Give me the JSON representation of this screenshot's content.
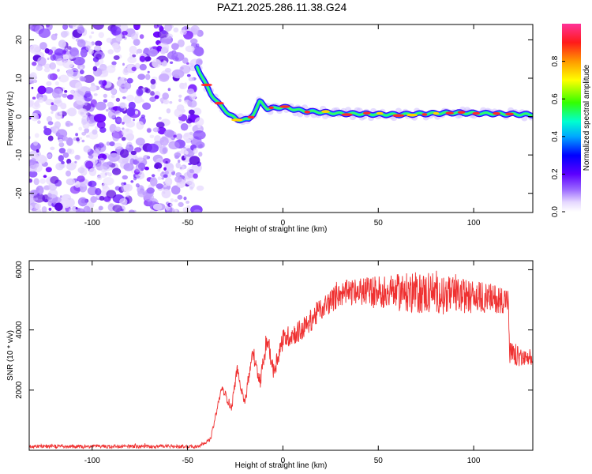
{
  "title": "PAZ1.2025.286.11.38.G24",
  "chart_data": [
    {
      "type": "heatmap",
      "name": "spectrogram",
      "xlabel": "Height of straight line (km)",
      "ylabel": "Frequency (Hz)",
      "xlim": [
        -133,
        131
      ],
      "ylim": [
        -25,
        24
      ],
      "xticks": [
        -100,
        -50,
        0,
        50,
        100
      ],
      "yticks": [
        -20,
        -10,
        0,
        10,
        20
      ],
      "colorbar": {
        "label": "Normalized spectral amplitude",
        "range": [
          0,
          1
        ],
        "ticks": [
          "0.0",
          "0.2",
          "0.4",
          "0.6",
          "0.8"
        ],
        "tick_values": [
          0,
          0.2,
          0.4,
          0.6,
          0.8
        ]
      },
      "noise_region": {
        "x_from": -133,
        "x_to": -43
      },
      "ridge": [
        {
          "x": -45,
          "f": 13
        },
        {
          "x": -42,
          "f": 10
        },
        {
          "x": -38,
          "f": 6
        },
        {
          "x": -33,
          "f": 3
        },
        {
          "x": -28,
          "f": 0.5
        },
        {
          "x": -24,
          "f": -0.8
        },
        {
          "x": -18,
          "f": -0.8
        },
        {
          "x": -15,
          "f": 1
        },
        {
          "x": -12,
          "f": 4
        },
        {
          "x": -8,
          "f": 2
        },
        {
          "x": 0,
          "f": 2.5
        },
        {
          "x": 10,
          "f": 1.5
        },
        {
          "x": 30,
          "f": 0.8
        },
        {
          "x": 60,
          "f": 0.5
        },
        {
          "x": 90,
          "f": 1
        },
        {
          "x": 131,
          "f": 0.5
        }
      ]
    },
    {
      "type": "line",
      "name": "snr",
      "xlabel": "Height of straight line (km)",
      "ylabel": "SNR (10 * v/v)",
      "xlim": [
        -133,
        131
      ],
      "ylim": [
        0,
        6300
      ],
      "xticks": [
        -100,
        -50,
        0,
        50,
        100
      ],
      "yticks": [
        2000,
        4000,
        6000
      ],
      "color": "#ef3131",
      "profile": [
        {
          "x": -133,
          "y": 130
        },
        {
          "x": -45,
          "y": 130
        },
        {
          "x": -38,
          "y": 350
        },
        {
          "x": -32,
          "y": 2100
        },
        {
          "x": -27,
          "y": 1400
        },
        {
          "x": -24,
          "y": 2700
        },
        {
          "x": -20,
          "y": 1600
        },
        {
          "x": -16,
          "y": 3200
        },
        {
          "x": -12,
          "y": 2300
        },
        {
          "x": -8,
          "y": 3700
        },
        {
          "x": -5,
          "y": 2600
        },
        {
          "x": 0,
          "y": 3700
        },
        {
          "x": 10,
          "y": 4000
        },
        {
          "x": 20,
          "y": 4700
        },
        {
          "x": 30,
          "y": 5200
        },
        {
          "x": 45,
          "y": 5300
        },
        {
          "x": 60,
          "y": 5250
        },
        {
          "x": 80,
          "y": 5200
        },
        {
          "x": 100,
          "y": 5100
        },
        {
          "x": 118,
          "y": 5000
        },
        {
          "x": 119,
          "y": 3200
        },
        {
          "x": 131,
          "y": 2950
        }
      ],
      "noise_amplitude": [
        {
          "x": -133,
          "a": 60
        },
        {
          "x": -40,
          "a": 60
        },
        {
          "x": 0,
          "a": 350
        },
        {
          "x": 40,
          "a": 450
        },
        {
          "x": 70,
          "a": 700
        },
        {
          "x": 118,
          "a": 450
        },
        {
          "x": 131,
          "a": 200
        }
      ]
    }
  ]
}
